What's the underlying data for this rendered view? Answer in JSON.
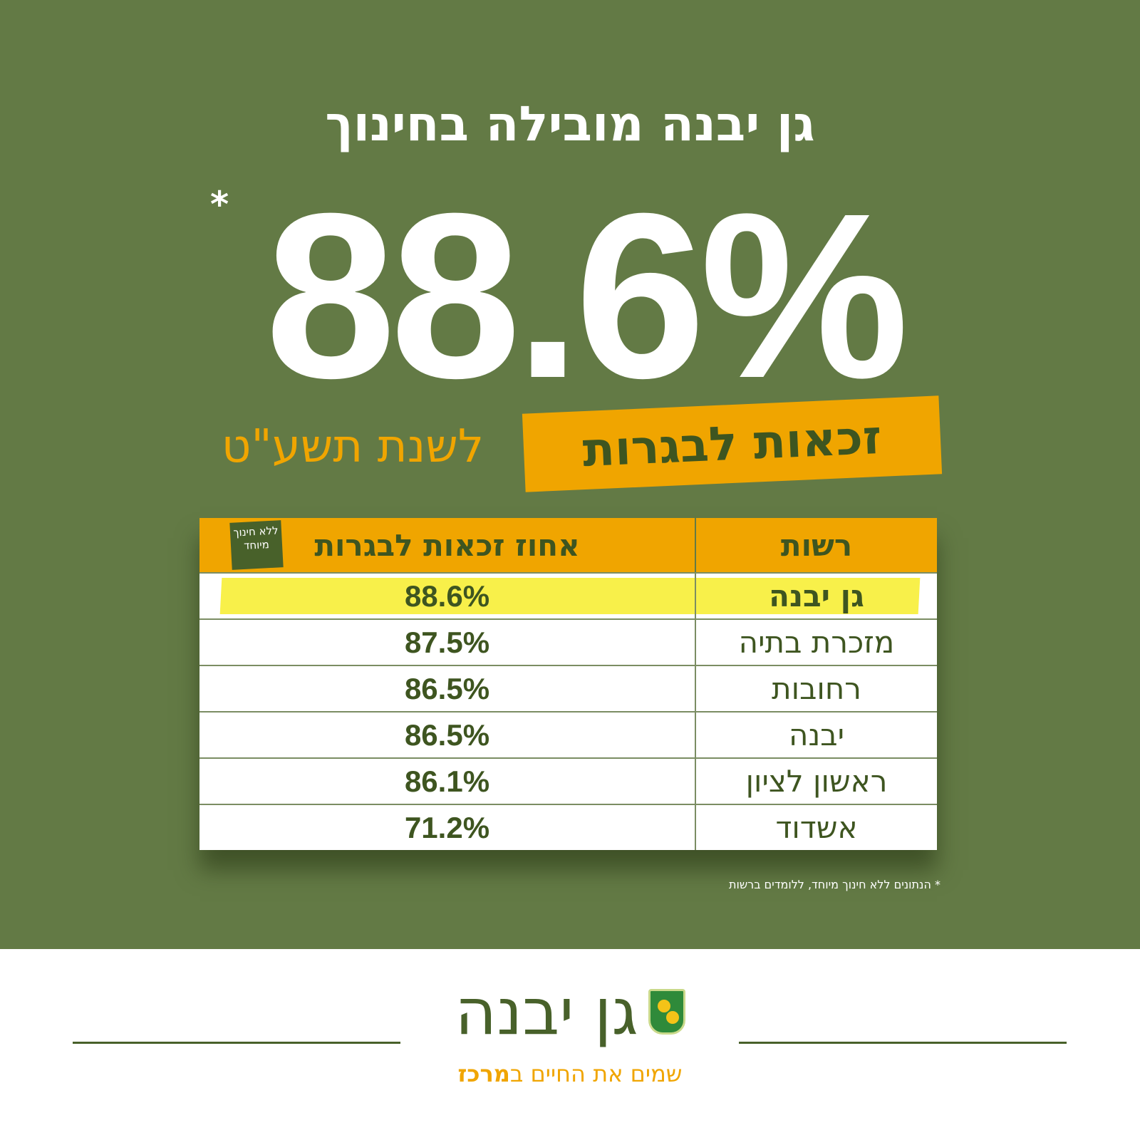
{
  "headline": "גן יבנה מובילה בחינוך",
  "big_stat": "88.6%",
  "asterisk": "*",
  "banner": "זכאות לבגרות",
  "year": "לשנת תשע\"ט",
  "table": {
    "headers": [
      "רשות",
      "אחוז זכאות לבגרות"
    ],
    "badge": "ללא חינוך מיוחד",
    "rows": [
      {
        "name": "גן יבנה",
        "value": "88.6%"
      },
      {
        "name": "מזכרת בתיה",
        "value": "87.5%"
      },
      {
        "name": "רחובות",
        "value": "86.5%"
      },
      {
        "name": "יבנה",
        "value": "86.5%"
      },
      {
        "name": "ראשון לציון",
        "value": "86.1%"
      },
      {
        "name": "אשדוד",
        "value": "71.2%"
      }
    ]
  },
  "footnote": "* הנתונים ללא חינוך מיוחד, ללומדים ברשות",
  "footer": {
    "logo_name": "גן יבנה",
    "slogan_prefix": "שמים את החיים ב",
    "slogan_bold": "מרכז"
  },
  "colors": {
    "green": "#637a45",
    "orange": "#f0a500",
    "dark_green": "#3e5520",
    "highlight": "#f8f04a"
  }
}
